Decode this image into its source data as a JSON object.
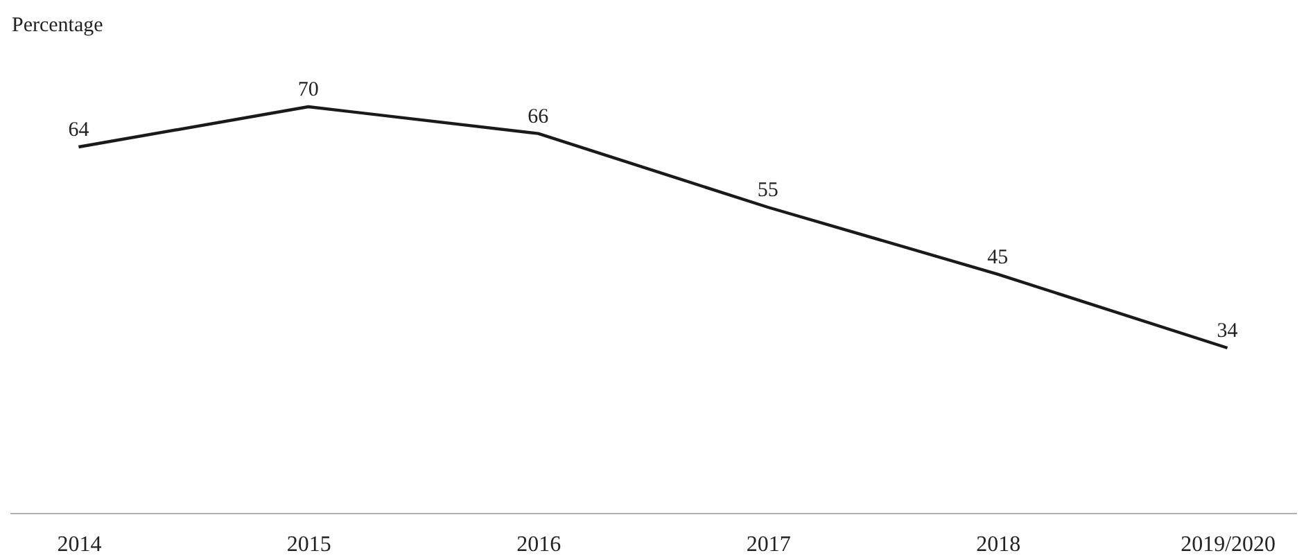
{
  "chart_data": {
    "type": "line",
    "ylabel": "Percentage",
    "categories": [
      "2014",
      "2015",
      "2016",
      "2017",
      "2018",
      "2019/2020"
    ],
    "series": [
      {
        "color": "#1a1a1a",
        "values": [
          64,
          70,
          66,
          55,
          45,
          34
        ]
      }
    ],
    "tick_labels": "x",
    "data_labels": true,
    "grid": false,
    "line_style": "solid"
  }
}
